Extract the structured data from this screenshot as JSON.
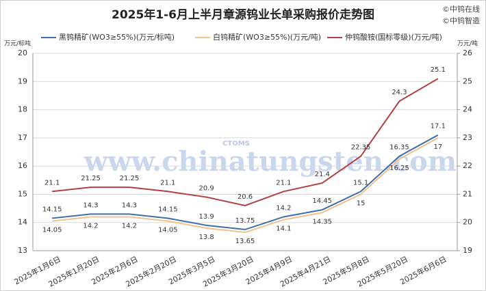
{
  "chart_data": {
    "type": "line",
    "title": "2025年1-6月上半月章源钨业长单采购报价走势图",
    "copyright": [
      "©中钨在线",
      "©中钨智造"
    ],
    "watermark": [
      "www.chinatungsten.com",
      "CTOMS"
    ],
    "ylabel": "万元/标吨",
    "y2label": "万元/吨",
    "categories": [
      "2025年1月6日",
      "2025年1月20日",
      "2025年2月6日",
      "2025年2月20日",
      "2025年3月5日",
      "2025年3月20日",
      "2025年4月9日",
      "2025年4月21日",
      "2025年5月8日",
      "2025年5月20日",
      "2025年6月6日"
    ],
    "series": [
      {
        "name": "黑钨精矿(WO3≥55%)(万元/标吨)",
        "color": "#3d6fa8",
        "label_color": "#3d6fa8",
        "label_pos": "above",
        "values": [
          14.15,
          14.3,
          14.3,
          14.15,
          13.9,
          13.75,
          14.2,
          14.45,
          15.1,
          16.35,
          17.1
        ]
      },
      {
        "name": "白钨精矿(WO3≥55%)(万元/吨)",
        "color": "#f3c08c",
        "label_color": "#e8a460",
        "label_pos": "below",
        "values": [
          14.05,
          14.2,
          14.2,
          14.05,
          13.8,
          13.65,
          14.1,
          14.35,
          15,
          16.25,
          17
        ]
      },
      {
        "name": "仲钨酸铵(国标零级)(万元/吨)",
        "color": "#b13f3f",
        "label_color": "#b13f3f",
        "label_pos": "above",
        "axis": "y2",
        "values": [
          21.1,
          21.25,
          21.25,
          21.1,
          20.9,
          20.6,
          21.1,
          21.4,
          22.35,
          24.3,
          25.1
        ]
      }
    ],
    "ylim": [
      13,
      20
    ],
    "yticks": [
      13,
      14,
      15,
      16,
      17,
      18,
      19,
      20
    ],
    "y2lim": [
      19,
      26
    ],
    "y2ticks": [
      19,
      20,
      21,
      22,
      23,
      24,
      25,
      26
    ],
    "grid": true
  }
}
